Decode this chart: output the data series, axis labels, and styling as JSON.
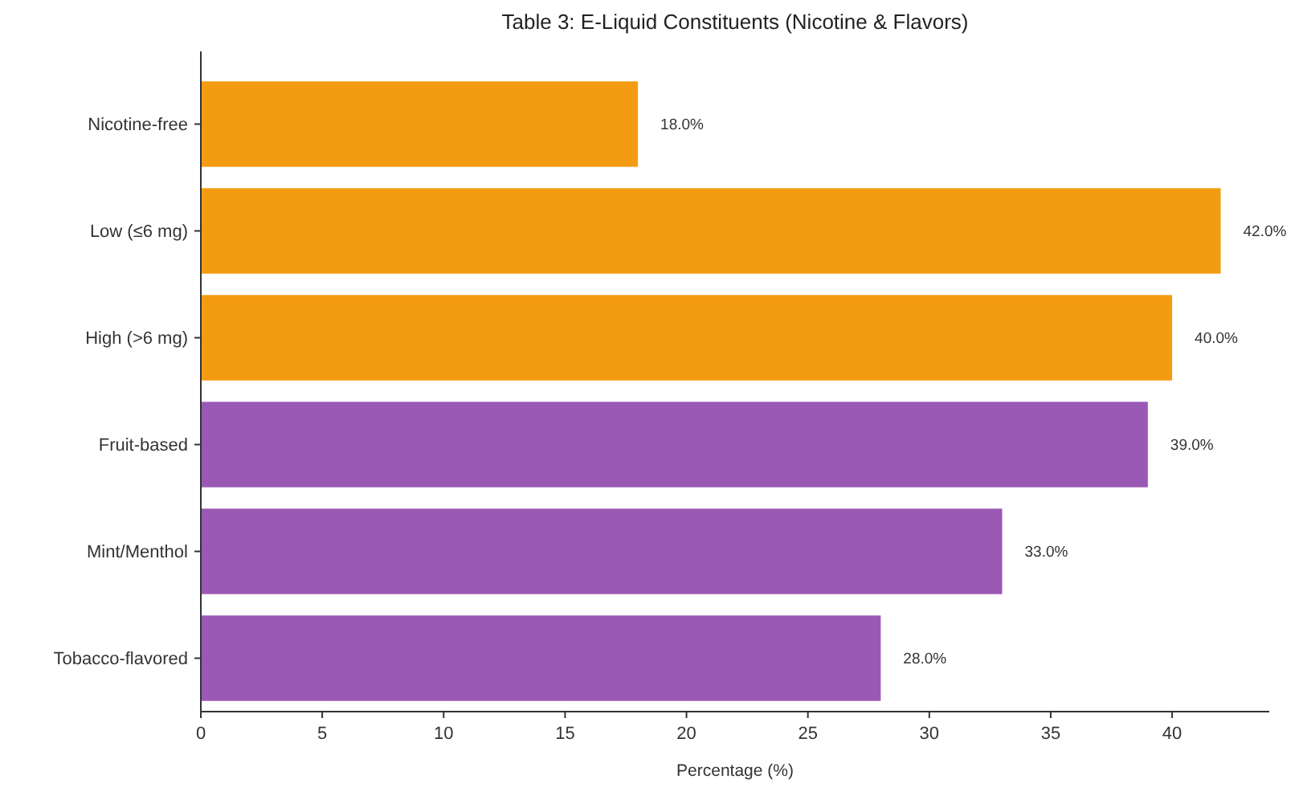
{
  "chart_data": {
    "type": "bar",
    "orientation": "horizontal",
    "title": "Table 3: E-Liquid Constituents (Nicotine & Flavors)",
    "xlabel": "Percentage (%)",
    "categories": [
      "Nicotine-free",
      "Low (≤6 mg)",
      "High (>6 mg)",
      "Fruit-based",
      "Mint/Menthol",
      "Tobacco-flavored"
    ],
    "values": [
      18,
      42,
      40,
      39,
      33,
      28
    ],
    "colors": [
      "#f39c12",
      "#f39c12",
      "#f39c12",
      "#9b59b6",
      "#9b59b6",
      "#9b59b6"
    ],
    "value_labels": [
      "18.0%",
      "42.0%",
      "40.0%",
      "39.0%",
      "33.0%",
      "28.0%"
    ],
    "xlim": [
      0,
      44
    ],
    "xticks": [
      0,
      5,
      10,
      15,
      20,
      25,
      30,
      35,
      40
    ],
    "grid": false
  }
}
